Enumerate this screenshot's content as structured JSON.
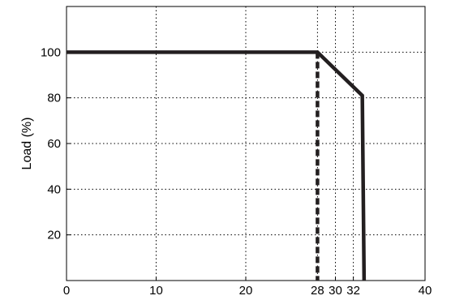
{
  "chart_data": {
    "type": "line",
    "title": "",
    "xlabel": "",
    "ylabel": "Load (%)",
    "xlim": [
      0,
      40
    ],
    "ylim": [
      0,
      120
    ],
    "x_ticks": [
      0,
      10,
      20,
      28,
      30,
      32,
      40
    ],
    "y_ticks": [
      20,
      40,
      60,
      80,
      100
    ],
    "grid": true,
    "series": [
      {
        "style": "solid",
        "color": "#231f20",
        "x": [
          0,
          28,
          33,
          33.2
        ],
        "y": [
          100,
          100,
          81,
          0
        ]
      },
      {
        "style": "dashed",
        "color": "#231f20",
        "x": [
          28,
          28
        ],
        "y": [
          100,
          0
        ]
      }
    ]
  }
}
